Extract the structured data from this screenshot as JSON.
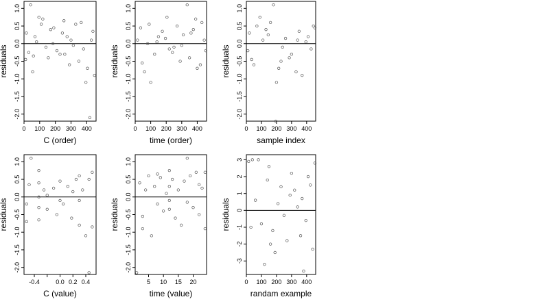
{
  "chart_data": [
    {
      "type": "scatter",
      "xlabel": "C (order)",
      "ylabel": "residuals",
      "xlim": [
        0,
        460
      ],
      "ylim": [
        -2.2,
        1.2
      ],
      "xticks": [
        0,
        100,
        200,
        300,
        400
      ],
      "xtick_labels": [
        "0",
        "100",
        "200",
        "300",
        "400"
      ],
      "yticks": [
        -2.0,
        -1.5,
        -1.0,
        -0.5,
        0.0,
        0.5,
        1.0
      ],
      "ytick_labels": [
        "-2.0",
        "-1.5",
        "-1.0",
        "-0.5",
        "0.0",
        "0.5",
        "1.0"
      ],
      "reference_line": 0,
      "x": [
        10,
        42,
        70,
        120,
        170,
        210,
        255,
        300,
        350,
        395,
        420,
        450,
        15,
        60,
        95,
        140,
        190,
        245,
        290,
        330,
        380,
        430,
        30,
        80,
        110,
        155,
        230,
        275,
        315,
        365,
        405,
        440,
        55,
        185,
        260
      ],
      "y": [
        -0.45,
        1.1,
        0.2,
        0.7,
        0.4,
        -0.2,
        0.65,
        0.1,
        -0.5,
        -1.1,
        -2.1,
        -0.9,
        0.3,
        -0.35,
        0.75,
        -0.1,
        0.45,
        0.3,
        -0.6,
        0.55,
        -0.15,
        0.1,
        -0.25,
        0.05,
        0.55,
        -0.4,
        -0.3,
        0.2,
        -0.05,
        0.6,
        -0.7,
        0.35,
        -0.8,
        0.0,
        -0.3
      ]
    },
    {
      "type": "scatter",
      "xlabel": "time (order)",
      "ylabel": "residuals",
      "xlim": [
        0,
        460
      ],
      "ylim": [
        -2.2,
        1.2
      ],
      "xticks": [
        0,
        100,
        200,
        300,
        400
      ],
      "xtick_labels": [
        "0",
        "100",
        "200",
        "300",
        "400"
      ],
      "yticks": [
        -2.0,
        -1.5,
        -1.0,
        -0.5,
        0.0,
        0.5,
        1.0
      ],
      "ytick_labels": [
        "-2.0",
        "-1.5",
        "-1.0",
        "-0.5",
        "0.0",
        "0.5",
        "1.0"
      ],
      "reference_line": 0,
      "x": [
        15,
        60,
        100,
        150,
        205,
        250,
        290,
        335,
        360,
        400,
        430,
        455,
        35,
        80,
        125,
        175,
        220,
        270,
        310,
        350,
        390,
        445,
        45,
        90,
        140,
        195,
        240,
        300,
        375,
        420
      ],
      "y": [
        0.1,
        -0.8,
        -1.1,
        0.2,
        0.75,
        -0.1,
        -0.5,
        1.1,
        0.3,
        -0.7,
        0.6,
        -0.2,
        0.45,
        0.0,
        -0.3,
        0.35,
        -0.15,
        0.5,
        0.25,
        -0.4,
        0.7,
        0.1,
        -0.55,
        0.55,
        0.05,
        0.15,
        -0.25,
        -0.05,
        0.4,
        -0.6
      ]
    },
    {
      "type": "scatter",
      "xlabel": "sample index",
      "ylabel": "residuals",
      "xlim": [
        0,
        460
      ],
      "ylim": [
        -2.2,
        1.2
      ],
      "xticks": [
        0,
        100,
        200,
        300,
        400
      ],
      "xtick_labels": [
        "0",
        "100",
        "200",
        "300",
        "400"
      ],
      "yticks": [
        -2.0,
        -1.5,
        -1.0,
        -0.5,
        0.0,
        0.5,
        1.0
      ],
      "ytick_labels": [
        "-2.0",
        "-1.5",
        "-1.0",
        "-0.5",
        "0.0",
        "0.5",
        "1.0"
      ],
      "reference_line": 0,
      "x": [
        20,
        50,
        90,
        130,
        180,
        195,
        240,
        285,
        330,
        370,
        410,
        445,
        10,
        70,
        110,
        160,
        200,
        230,
        260,
        300,
        350,
        395,
        430,
        455,
        35,
        145,
        215,
        340
      ],
      "y": [
        0.3,
        -0.6,
        0.75,
        0.4,
        1.1,
        -2.2,
        -0.1,
        -0.4,
        -0.8,
        -0.9,
        0.2,
        0.5,
        -0.2,
        0.5,
        0.1,
        0.6,
        -1.1,
        -0.5,
        0.15,
        -0.3,
        0.35,
        0.05,
        -0.15,
        0.45,
        -0.45,
        0.25,
        -0.7,
        0.1
      ]
    },
    {
      "type": "scatter",
      "xlabel": "C (value)",
      "ylabel": "residuals",
      "xlim": [
        -0.56,
        0.56
      ],
      "ylim": [
        -2.2,
        1.2
      ],
      "xticks": [
        -0.4,
        -0.2,
        0.0,
        0.2,
        0.4
      ],
      "xtick_labels": [
        "-0.4",
        "",
        "0.0",
        "0.2",
        "0.4"
      ],
      "yticks": [
        -2.0,
        -1.5,
        -1.0,
        -0.5,
        0.0,
        0.5,
        1.0
      ],
      "ytick_labels": [
        "-2.0",
        "-1.5",
        "-1.0",
        "-0.5",
        "0.0",
        "0.5",
        "1.0"
      ],
      "reference_line": 0,
      "x": [
        -0.52,
        -0.48,
        -0.45,
        -0.33,
        -0.33,
        -0.33,
        -0.33,
        -0.33,
        -0.25,
        -0.2,
        -0.1,
        -0.05,
        0.0,
        0.05,
        0.12,
        0.18,
        0.25,
        0.3,
        0.3,
        0.3,
        0.35,
        0.4,
        0.45,
        0.45,
        0.5,
        0.5,
        -0.52,
        -0.2,
        0.0,
        0.2
      ],
      "y": [
        -0.2,
        0.35,
        1.1,
        0.75,
        0.4,
        0.0,
        -0.3,
        -0.65,
        0.2,
        -0.35,
        0.25,
        -0.5,
        0.45,
        -0.2,
        0.3,
        -0.6,
        0.5,
        0.6,
        -0.1,
        -0.8,
        0.2,
        -1.1,
        -2.15,
        0.5,
        -0.85,
        0.7,
        -0.7,
        0.05,
        -0.1,
        0.15
      ]
    },
    {
      "type": "scatter",
      "xlabel": "time (value)",
      "ylabel": "residuals",
      "xlim": [
        0.5,
        24.5
      ],
      "ylim": [
        -2.2,
        1.2
      ],
      "xticks": [
        5,
        10,
        15,
        20
      ],
      "xtick_labels": [
        "5",
        "10",
        "15",
        "20"
      ],
      "yticks": [
        -2.0,
        -1.5,
        -1.0,
        -0.5,
        0.0,
        0.5,
        1.0
      ],
      "ytick_labels": [
        "-2.0",
        "-1.5",
        "-1.0",
        "-0.5",
        "0.0",
        "0.5",
        "1.0"
      ],
      "reference_line": 0,
      "x": [
        1,
        2,
        3,
        4,
        5,
        6,
        7,
        8,
        9,
        10,
        11,
        12,
        12,
        12,
        12,
        13,
        14,
        15,
        16,
        17,
        18,
        19,
        20,
        21,
        22,
        23,
        24,
        24,
        3,
        8,
        18,
        22
      ],
      "y": [
        -2.15,
        0.4,
        -0.9,
        0.2,
        0.6,
        -1.1,
        0.3,
        -0.2,
        0.55,
        -0.4,
        0.1,
        0.75,
        0.3,
        -0.1,
        -0.35,
        0.5,
        -0.6,
        0.2,
        -0.8,
        0.45,
        1.1,
        0.6,
        -0.3,
        0.7,
        -0.5,
        0.25,
        0.7,
        -0.9,
        -0.55,
        0.65,
        -0.15,
        0.35
      ]
    },
    {
      "type": "scatter",
      "xlabel": "randam example",
      "ylabel": "residuals",
      "xlim": [
        0,
        460
      ],
      "ylim": [
        -3.8,
        3.3
      ],
      "xticks": [
        0,
        100,
        200,
        300,
        400
      ],
      "xtick_labels": [
        "0",
        "100",
        "200",
        "300",
        "400"
      ],
      "yticks": [
        -3,
        -2,
        -1,
        0,
        1,
        2,
        3
      ],
      "ytick_labels": [
        "-3",
        "-2",
        "-1",
        "0",
        "1",
        "2",
        "3"
      ],
      "reference_line": 0,
      "x": [
        15,
        40,
        80,
        120,
        150,
        190,
        230,
        270,
        320,
        360,
        380,
        410,
        440,
        455,
        60,
        100,
        140,
        175,
        210,
        250,
        290,
        340,
        395,
        425,
        30,
        160,
        300,
        370
      ],
      "y": [
        2.9,
        3.0,
        3.0,
        -3.2,
        2.6,
        -2.5,
        1.4,
        -1.8,
        1.2,
        -1.5,
        -3.6,
        2.0,
        -2.3,
        2.8,
        0.6,
        -0.8,
        1.8,
        -1.2,
        0.4,
        -0.3,
        0.9,
        0.2,
        -0.6,
        1.5,
        -1.0,
        -2.0,
        2.2,
        0.7
      ]
    }
  ]
}
